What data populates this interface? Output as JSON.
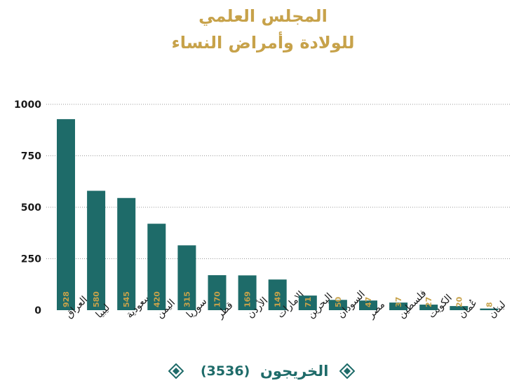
{
  "title_line1": "المجلس العلمي",
  "title_line2": "للولادة وأمراض النساء",
  "legend": {
    "label": "الخريجون",
    "total": "(3536)"
  },
  "colors": {
    "bar": "#1e6b69",
    "value_label": "#c7a24a",
    "title": "#c7a24a",
    "axis_text": "#1a1a1a",
    "grid": "#9a9a9a"
  },
  "chart_data": {
    "type": "bar",
    "title": "المجلس العلمي للولادة وأمراض النساء",
    "categories": [
      "العراق",
      "ليبيا",
      "السعودية",
      "اليمن",
      "سوريا",
      "قطر",
      "الأردن",
      "الإمارات",
      "البحرين",
      "السودان",
      "مصر",
      "فلسطين",
      "الكويت",
      "عُمان",
      "لبنان"
    ],
    "series": [
      {
        "name": "الخريجون",
        "values": [
          928,
          580,
          545,
          420,
          315,
          170,
          169,
          149,
          71,
          50,
          47,
          37,
          27,
          20,
          8
        ]
      }
    ],
    "ylim": [
      0,
      1000
    ],
    "yticks": [
      0,
      250,
      500,
      750,
      1000
    ],
    "grid": true,
    "legend_position": "bottom"
  }
}
